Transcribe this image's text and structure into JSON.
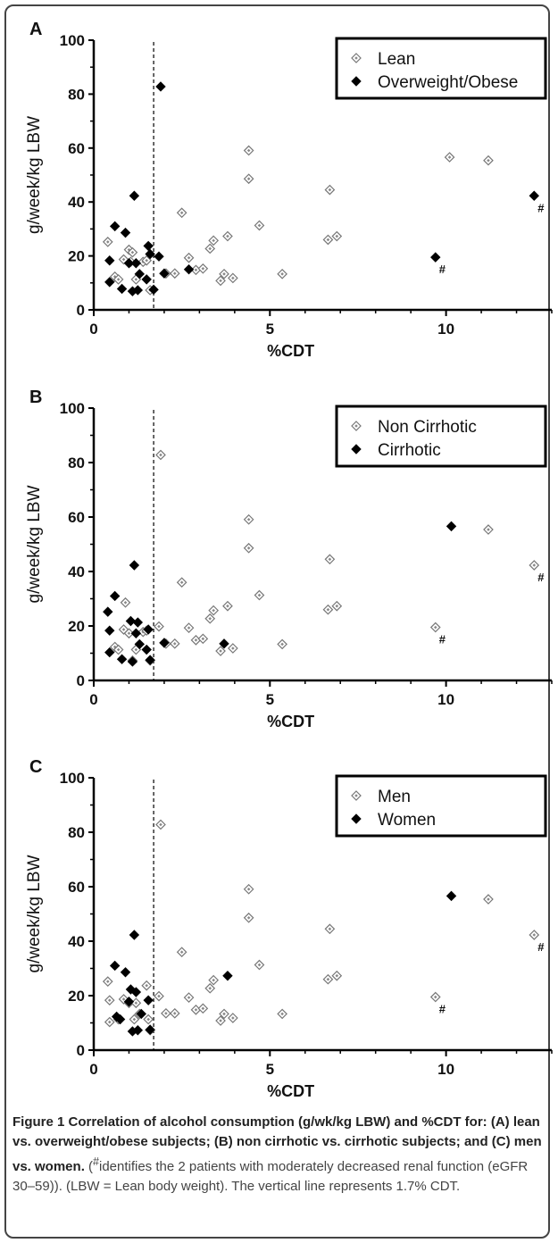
{
  "chart_data": [
    {
      "type": "scatter",
      "panel_label": "A",
      "xlabel": "%CDT",
      "ylabel": "g/week/kg LBW",
      "xlim": [
        0,
        13
      ],
      "ylim": [
        0,
        100
      ],
      "xticks": [
        "0",
        "5",
        "10"
      ],
      "yticks": [
        "0",
        "20",
        "40",
        "60",
        "80",
        "100"
      ],
      "reference_line_x": 1.7,
      "legend_position": "top-right",
      "series": [
        {
          "name": "Lean",
          "marker": "open-diamond",
          "points": [
            [
              0.4,
              25.2
            ],
            [
              0.6,
              12.3
            ],
            [
              0.7,
              11.3
            ],
            [
              0.85,
              18.7
            ],
            [
              1.0,
              22.3
            ],
            [
              1.05,
              17.8
            ],
            [
              1.1,
              21.3
            ],
            [
              1.2,
              11.3
            ],
            [
              1.4,
              17.8
            ],
            [
              1.5,
              18.3
            ],
            [
              1.6,
              7.3
            ],
            [
              2.05,
              13.5
            ],
            [
              2.3,
              13.5
            ],
            [
              2.5,
              36.0
            ],
            [
              2.7,
              19.3
            ],
            [
              2.9,
              14.8
            ],
            [
              3.1,
              15.3
            ],
            [
              3.3,
              22.7
            ],
            [
              3.4,
              25.7
            ],
            [
              3.6,
              10.8
            ],
            [
              3.7,
              13.3
            ],
            [
              3.8,
              27.3
            ],
            [
              3.95,
              11.8
            ],
            [
              4.4,
              59.1
            ],
            [
              4.4,
              48.6
            ],
            [
              4.7,
              31.3
            ],
            [
              5.35,
              13.3
            ],
            [
              6.65,
              26.0
            ],
            [
              6.7,
              44.5
            ],
            [
              6.9,
              27.3
            ],
            [
              10.1,
              56.6
            ],
            [
              11.2,
              55.4
            ]
          ]
        },
        {
          "name": "Overweight/Obese",
          "marker": "filled-diamond",
          "points": [
            [
              0.45,
              18.3
            ],
            [
              0.45,
              10.3
            ],
            [
              0.6,
              31.0
            ],
            [
              0.8,
              7.8
            ],
            [
              0.9,
              28.6
            ],
            [
              1.0,
              17.3
            ],
            [
              1.1,
              6.9
            ],
            [
              1.15,
              42.3
            ],
            [
              1.2,
              17.3
            ],
            [
              1.25,
              7.3
            ],
            [
              1.3,
              13.3
            ],
            [
              1.5,
              11.3
            ],
            [
              1.55,
              23.7
            ],
            [
              1.6,
              20.7
            ],
            [
              1.7,
              7.5
            ],
            [
              1.9,
              82.8
            ],
            [
              1.85,
              19.8
            ],
            [
              2.0,
              13.5
            ],
            [
              2.7,
              15.0
            ],
            [
              9.7,
              19.5
            ],
            [
              12.5,
              42.3
            ]
          ],
          "annotations": [
            {
              "x": 9.7,
              "y": 19.5,
              "text": "#"
            },
            {
              "x": 12.5,
              "y": 42.3,
              "text": "#"
            }
          ]
        }
      ]
    },
    {
      "type": "scatter",
      "panel_label": "B",
      "xlabel": "%CDT",
      "ylabel": "g/week/kg LBW",
      "xlim": [
        0,
        13
      ],
      "ylim": [
        0,
        100
      ],
      "xticks": [
        "0",
        "5",
        "10"
      ],
      "yticks": [
        "0",
        "20",
        "40",
        "60",
        "80",
        "100"
      ],
      "reference_line_x": 1.7,
      "legend_position": "top-right",
      "series": [
        {
          "name": "Non Cirrhotic",
          "marker": "open-diamond",
          "points": [
            [
              0.6,
              12.3
            ],
            [
              0.7,
              11.3
            ],
            [
              0.85,
              18.7
            ],
            [
              0.9,
              28.6
            ],
            [
              1.0,
              17.3
            ],
            [
              1.1,
              7.3
            ],
            [
              1.2,
              11.3
            ],
            [
              1.4,
              17.8
            ],
            [
              1.5,
              18.3
            ],
            [
              1.6,
              7.3
            ],
            [
              1.9,
              82.8
            ],
            [
              1.85,
              19.8
            ],
            [
              2.05,
              13.5
            ],
            [
              2.3,
              13.5
            ],
            [
              2.5,
              36.0
            ],
            [
              2.7,
              19.3
            ],
            [
              2.9,
              14.8
            ],
            [
              3.1,
              15.3
            ],
            [
              3.3,
              22.7
            ],
            [
              3.4,
              25.7
            ],
            [
              3.6,
              10.8
            ],
            [
              3.8,
              27.3
            ],
            [
              3.95,
              11.8
            ],
            [
              4.4,
              59.1
            ],
            [
              4.4,
              48.6
            ],
            [
              4.7,
              31.3
            ],
            [
              5.35,
              13.3
            ],
            [
              6.65,
              26.0
            ],
            [
              6.7,
              44.5
            ],
            [
              6.9,
              27.3
            ],
            [
              9.7,
              19.5
            ],
            [
              11.2,
              55.4
            ],
            [
              12.5,
              42.3
            ]
          ],
          "annotations": [
            {
              "x": 9.7,
              "y": 19.5,
              "text": "#"
            },
            {
              "x": 12.5,
              "y": 42.3,
              "text": "#"
            }
          ]
        },
        {
          "name": "Cirrhotic",
          "marker": "filled-diamond",
          "points": [
            [
              0.4,
              25.2
            ],
            [
              0.45,
              18.3
            ],
            [
              0.45,
              10.3
            ],
            [
              0.6,
              31.0
            ],
            [
              0.8,
              7.8
            ],
            [
              1.05,
              21.8
            ],
            [
              1.1,
              6.9
            ],
            [
              1.15,
              42.3
            ],
            [
              1.2,
              17.3
            ],
            [
              1.25,
              21.3
            ],
            [
              1.3,
              13.3
            ],
            [
              1.5,
              11.3
            ],
            [
              1.55,
              18.7
            ],
            [
              1.6,
              7.5
            ],
            [
              2.0,
              13.8
            ],
            [
              3.7,
              13.5
            ],
            [
              10.15,
              56.6
            ]
          ]
        }
      ]
    },
    {
      "type": "scatter",
      "panel_label": "C",
      "xlabel": "%CDT",
      "ylabel": "g/week/kg LBW",
      "xlim": [
        0,
        13
      ],
      "ylim": [
        0,
        100
      ],
      "xticks": [
        "0",
        "5",
        "10"
      ],
      "yticks": [
        "0",
        "20",
        "40",
        "60",
        "80",
        "100"
      ],
      "reference_line_x": 1.7,
      "legend_position": "top-right",
      "series": [
        {
          "name": "Men",
          "marker": "open-diamond",
          "points": [
            [
              0.4,
              25.2
            ],
            [
              0.45,
              18.3
            ],
            [
              0.45,
              10.3
            ],
            [
              0.7,
              11.3
            ],
            [
              0.85,
              18.7
            ],
            [
              1.0,
              17.3
            ],
            [
              1.15,
              11.3
            ],
            [
              1.2,
              17.3
            ],
            [
              1.3,
              13.3
            ],
            [
              1.5,
              23.7
            ],
            [
              1.55,
              11.3
            ],
            [
              1.6,
              7.3
            ],
            [
              1.9,
              82.8
            ],
            [
              1.85,
              19.8
            ],
            [
              2.05,
              13.5
            ],
            [
              2.3,
              13.5
            ],
            [
              2.5,
              36.0
            ],
            [
              2.7,
              19.3
            ],
            [
              2.9,
              14.8
            ],
            [
              3.1,
              15.3
            ],
            [
              3.3,
              22.7
            ],
            [
              3.4,
              25.7
            ],
            [
              3.6,
              10.8
            ],
            [
              3.7,
              13.3
            ],
            [
              3.95,
              11.8
            ],
            [
              4.4,
              59.1
            ],
            [
              4.4,
              48.6
            ],
            [
              4.7,
              31.3
            ],
            [
              5.35,
              13.3
            ],
            [
              6.65,
              26.0
            ],
            [
              6.7,
              44.5
            ],
            [
              6.9,
              27.3
            ],
            [
              9.7,
              19.5
            ],
            [
              11.2,
              55.4
            ],
            [
              12.5,
              42.3
            ]
          ],
          "annotations": [
            {
              "x": 9.7,
              "y": 19.5,
              "text": "#"
            },
            {
              "x": 12.5,
              "y": 42.3,
              "text": "#"
            }
          ]
        },
        {
          "name": "Women",
          "marker": "filled-diamond",
          "points": [
            [
              0.6,
              31.0
            ],
            [
              0.65,
              12.3
            ],
            [
              0.75,
              11.3
            ],
            [
              0.9,
              28.6
            ],
            [
              1.0,
              17.8
            ],
            [
              1.05,
              22.3
            ],
            [
              1.1,
              6.9
            ],
            [
              1.15,
              42.3
            ],
            [
              1.2,
              21.3
            ],
            [
              1.25,
              7.3
            ],
            [
              1.35,
              13.3
            ],
            [
              1.55,
              18.3
            ],
            [
              1.6,
              7.5
            ],
            [
              3.8,
              27.3
            ],
            [
              10.15,
              56.6
            ]
          ]
        }
      ]
    }
  ],
  "caption": {
    "bold": "Figure 1 Correlation of alcohol consumption (g/wk/kg LBW) and %CDT for: (A) lean vs. overweight/obese subjects; (B) non cirrhotic vs. cirrhotic subjects; and (C) men vs. women.",
    "normal_open": " (",
    "superscript": "#",
    "normal_rest": "identifies the 2 patients with moderately decreased renal function (eGFR 30–59)). (LBW = Lean body weight). The vertical line represents 1.7% CDT."
  }
}
